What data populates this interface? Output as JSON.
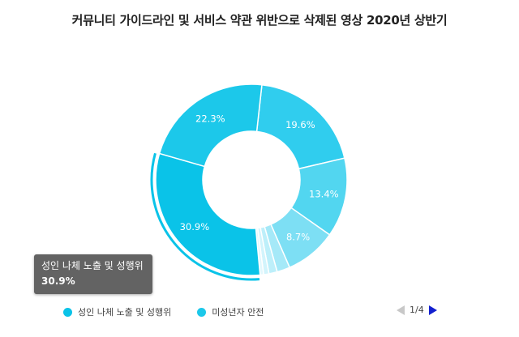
{
  "chart_data": {
    "type": "pie",
    "title": "커뮤니티 가이드라인 및 서비스 약관 위반으로 삭제된 영상 2020년 상반기",
    "slices": [
      {
        "name": "성인 나체 노출 및 성행위",
        "value": 30.9,
        "label": "30.9%",
        "color": "#0ac3e8"
      },
      {
        "name": "",
        "value": 22.3,
        "label": "22.3%",
        "color": "#1cc8ea"
      },
      {
        "name": "",
        "value": 19.6,
        "label": "19.6%",
        "color": "#30cdee"
      },
      {
        "name": "",
        "value": 13.4,
        "label": "13.4%",
        "color": "#52d6f0"
      },
      {
        "name": "",
        "value": 8.7,
        "label": "8.7%",
        "color": "#7ddff4"
      },
      {
        "name": "",
        "value": 2.2,
        "label": "",
        "color": "#a5e9f8"
      },
      {
        "name": "",
        "value": 1.4,
        "label": "",
        "color": "#bdeffa"
      },
      {
        "name": "",
        "value": 0.9,
        "label": "",
        "color": "#d2f4fc"
      },
      {
        "name": "",
        "value": 0.6,
        "label": "",
        "color": "#e2f8fd"
      }
    ],
    "legend": [
      {
        "name": "성인 나체 노출 및 성행위",
        "color": "#0ac3e8"
      },
      {
        "name": "미성년자 안전",
        "color": "#1cc8ea"
      }
    ],
    "legend_position": "bottom",
    "tooltip": {
      "name": "성인 나체 노출 및 성행위",
      "value": "30.9%"
    }
  },
  "pager": {
    "text": "1/4"
  }
}
